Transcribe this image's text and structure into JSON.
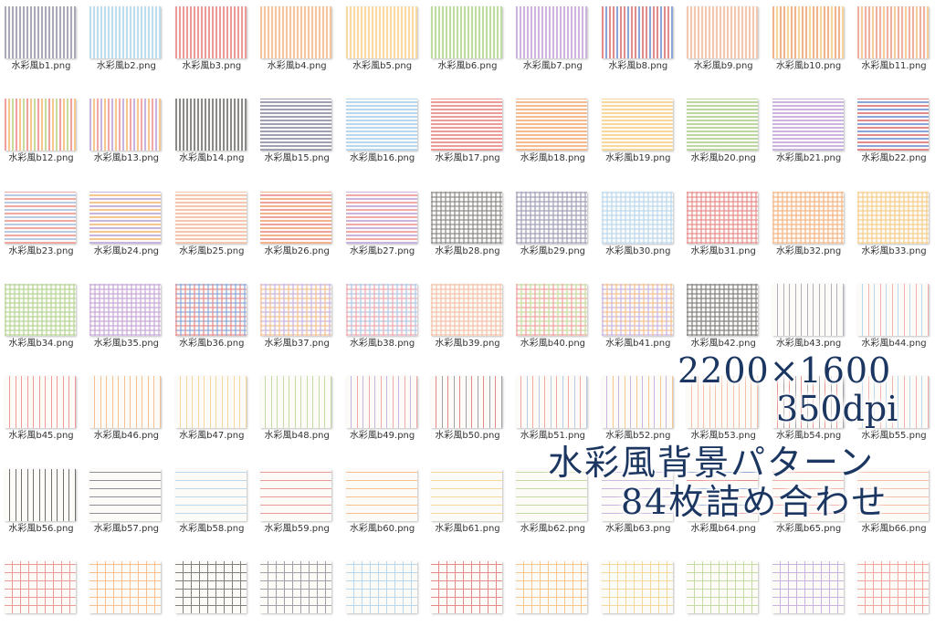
{
  "files": [
    {
      "label": "水彩風b1.png",
      "pattern": "v",
      "colors": [
        "#a9a9b8"
      ]
    },
    {
      "label": "水彩風b2.png",
      "pattern": "v",
      "colors": [
        "#bcdcf0"
      ]
    },
    {
      "label": "水彩風b3.png",
      "pattern": "v",
      "colors": [
        "#ec9a9a"
      ]
    },
    {
      "label": "水彩風b4.png",
      "pattern": "v",
      "colors": [
        "#f6c49a"
      ]
    },
    {
      "label": "水彩風b5.png",
      "pattern": "v",
      "colors": [
        "#f8d9a0"
      ]
    },
    {
      "label": "水彩風b6.png",
      "pattern": "v",
      "colors": [
        "#bfdca0"
      ]
    },
    {
      "label": "水彩風b7.png",
      "pattern": "v",
      "colors": [
        "#cdb3e0"
      ]
    },
    {
      "label": "水彩風b8.png",
      "pattern": "v",
      "colors": [
        "#e48a8a",
        "#8aa6d8"
      ]
    },
    {
      "label": "水彩風b9.png",
      "pattern": "v",
      "colors": [
        "#f4c8b0"
      ]
    },
    {
      "label": "水彩風b10.png",
      "pattern": "v",
      "colors": [
        "#f2b48a",
        "#f6d49a"
      ]
    },
    {
      "label": "水彩風b11.png",
      "pattern": "v",
      "colors": [
        "#f2b0a0",
        "#f6cc9a"
      ]
    },
    {
      "label": "水彩風b12.png",
      "pattern": "v",
      "colors": [
        "#f0a0a0",
        "#f6c890",
        "#c8dca0"
      ]
    },
    {
      "label": "水彩風b13.png",
      "pattern": "v",
      "colors": [
        "#c8b4e0",
        "#f6c890",
        "#f0a8a8"
      ]
    },
    {
      "label": "水彩風b14.png",
      "pattern": "v",
      "colors": [
        "#8a8a8a"
      ]
    },
    {
      "label": "水彩風b15.png",
      "pattern": "h",
      "colors": [
        "#a0a0b4"
      ]
    },
    {
      "label": "水彩風b16.png",
      "pattern": "h",
      "colors": [
        "#b8d8f0"
      ]
    },
    {
      "label": "水彩風b17.png",
      "pattern": "h",
      "colors": [
        "#ec9a9a"
      ]
    },
    {
      "label": "水彩風b18.png",
      "pattern": "h",
      "colors": [
        "#f4bc90"
      ]
    },
    {
      "label": "水彩風b19.png",
      "pattern": "h",
      "colors": [
        "#f6d89c"
      ]
    },
    {
      "label": "水彩風b20.png",
      "pattern": "h",
      "colors": [
        "#bcd8a0"
      ]
    },
    {
      "label": "水彩風b21.png",
      "pattern": "h",
      "colors": [
        "#ccb4e0"
      ]
    },
    {
      "label": "水彩風b22.png",
      "pattern": "h",
      "colors": [
        "#e48a8a",
        "#8aa6d8"
      ]
    },
    {
      "label": "水彩風b23.png",
      "pattern": "h",
      "colors": [
        "#f0a8a0",
        "#b8cce8"
      ]
    },
    {
      "label": "水彩風b24.png",
      "pattern": "h",
      "colors": [
        "#c8b4e0",
        "#f6c890"
      ]
    },
    {
      "label": "水彩風b25.png",
      "pattern": "h",
      "colors": [
        "#f4c8b0"
      ]
    },
    {
      "label": "水彩風b26.png",
      "pattern": "h",
      "colors": [
        "#f2b48a",
        "#f0a0a0"
      ]
    },
    {
      "label": "水彩風b27.png",
      "pattern": "h",
      "colors": [
        "#c8b4e0",
        "#f0a8a8"
      ]
    },
    {
      "label": "水彩風b28.png",
      "pattern": "c",
      "colors": [
        "#8a8a8a"
      ]
    },
    {
      "label": "水彩風b29.png",
      "pattern": "c",
      "colors": [
        "#a0a0b8"
      ]
    },
    {
      "label": "水彩風b30.png",
      "pattern": "c",
      "colors": [
        "#b8d8f0"
      ]
    },
    {
      "label": "水彩風b31.png",
      "pattern": "c",
      "colors": [
        "#e88c8c"
      ]
    },
    {
      "label": "水彩風b32.png",
      "pattern": "c",
      "colors": [
        "#f4b484"
      ]
    },
    {
      "label": "水彩風b33.png",
      "pattern": "c",
      "colors": [
        "#f6cc88"
      ]
    },
    {
      "label": "水彩風b34.png",
      "pattern": "c",
      "colors": [
        "#b4d494"
      ]
    },
    {
      "label": "水彩風b35.png",
      "pattern": "c",
      "colors": [
        "#c4a8dc"
      ]
    },
    {
      "label": "水彩風b36.png",
      "pattern": "c",
      "colors": [
        "#e48a8a",
        "#8aa6d8"
      ]
    },
    {
      "label": "水彩風b37.png",
      "pattern": "c",
      "colors": [
        "#f4c090",
        "#c8b4e0"
      ]
    },
    {
      "label": "水彩風b38.png",
      "pattern": "c",
      "colors": [
        "#f0a8b0",
        "#b0c8e8"
      ]
    },
    {
      "label": "水彩風b39.png",
      "pattern": "c",
      "colors": [
        "#f4c0a8"
      ]
    },
    {
      "label": "水彩風b40.png",
      "pattern": "c",
      "colors": [
        "#f0a0a0",
        "#c8dca0"
      ]
    },
    {
      "label": "水彩風b41.png",
      "pattern": "c",
      "colors": [
        "#c8b4e0",
        "#f4c090"
      ]
    },
    {
      "label": "水彩風b42.png",
      "pattern": "c",
      "colors": [
        "#808080"
      ]
    },
    {
      "label": "水彩風b43.png",
      "pattern": "t",
      "colors": [
        "#b0b0b8"
      ]
    },
    {
      "label": "水彩風b44.png",
      "pattern": "t",
      "colors": [
        "#b8d8f0",
        "#f0b0b0"
      ]
    },
    {
      "label": "水彩風b45.png",
      "pattern": "t",
      "colors": [
        "#f09a9a"
      ]
    },
    {
      "label": "水彩風b46.png",
      "pattern": "t",
      "colors": [
        "#f6c090"
      ]
    },
    {
      "label": "水彩風b47.png",
      "pattern": "t",
      "colors": [
        "#f6d89c"
      ]
    },
    {
      "label": "水彩風b48.png",
      "pattern": "t",
      "colors": [
        "#c4dca4"
      ]
    },
    {
      "label": "水彩風b49.png",
      "pattern": "t",
      "colors": [
        "#c8b4e0",
        "#f0a8a8"
      ]
    },
    {
      "label": "水彩風b50.png",
      "pattern": "t",
      "colors": [
        "#e48a8a",
        "#a0a0a8"
      ]
    },
    {
      "label": "水彩風b51.png",
      "pattern": "t",
      "colors": [
        "#f0a8a0",
        "#b8cce8"
      ]
    },
    {
      "label": "水彩風b52.png",
      "pattern": "t",
      "colors": [
        "#c8b4e0",
        "#f6c890"
      ]
    },
    {
      "label": "水彩風b53.png",
      "pattern": "t",
      "colors": [
        "#f4c0a8"
      ]
    },
    {
      "label": "水彩風b54.png",
      "pattern": "t",
      "colors": [
        "#e89090",
        "#a0a0a8"
      ]
    },
    {
      "label": "水彩風b55.png",
      "pattern": "t",
      "colors": [
        "#b8d8f0",
        "#f0b0b0"
      ]
    },
    {
      "label": "水彩風b56.png",
      "pattern": "t",
      "colors": [
        "#707070"
      ]
    },
    {
      "label": "水彩風b57.png",
      "pattern": "th",
      "colors": [
        "#909098"
      ]
    },
    {
      "label": "水彩風b58.png",
      "pattern": "th",
      "colors": [
        "#b8d8f0"
      ]
    },
    {
      "label": "水彩風b59.png",
      "pattern": "th",
      "colors": [
        "#ec9a9a"
      ]
    },
    {
      "label": "水彩風b60.png",
      "pattern": "th",
      "colors": [
        "#f6c090"
      ]
    },
    {
      "label": "水彩風b61.png",
      "pattern": "th",
      "colors": [
        "#f6d89c"
      ]
    },
    {
      "label": "水彩風b62.png",
      "pattern": "th",
      "colors": [
        "#c4dca4"
      ]
    },
    {
      "label": "水彩風b63.png",
      "pattern": "th",
      "colors": [
        "#c8b4e0"
      ]
    },
    {
      "label": "水彩風b64.png",
      "pattern": "th",
      "colors": [
        "#e48a8a",
        "#8aa6d8"
      ]
    },
    {
      "label": "水彩風b65.png",
      "pattern": "th",
      "colors": [
        "#f0a8a0"
      ]
    },
    {
      "label": "水彩風b66.png",
      "pattern": "th",
      "colors": [
        "#f4c0a8"
      ]
    },
    {
      "label": "",
      "pattern": "tc",
      "colors": [
        "#ec9a9a"
      ]
    },
    {
      "label": "",
      "pattern": "tc",
      "colors": [
        "#f6c090"
      ]
    },
    {
      "label": "",
      "pattern": "tc",
      "colors": [
        "#808080"
      ]
    },
    {
      "label": "",
      "pattern": "tc",
      "colors": [
        "#a0a0a8"
      ]
    },
    {
      "label": "",
      "pattern": "tc",
      "colors": [
        "#b8d8f0"
      ]
    },
    {
      "label": "",
      "pattern": "tc",
      "colors": [
        "#e48a8a"
      ]
    },
    {
      "label": "",
      "pattern": "tc",
      "colors": [
        "#f6c890"
      ]
    },
    {
      "label": "",
      "pattern": "tc",
      "colors": [
        "#f6d89c"
      ]
    },
    {
      "label": "",
      "pattern": "tc",
      "colors": [
        "#c4dca4"
      ]
    },
    {
      "label": "",
      "pattern": "tc",
      "colors": [
        "#c8b4e0"
      ]
    },
    {
      "label": "",
      "pattern": "tc",
      "colors": [
        "#f0a8a0"
      ]
    }
  ],
  "overlay": {
    "size": "2200×1600",
    "dpi": "350dpi",
    "title": "水彩風背景パターン",
    "count": "84枚詰め合わせ",
    "text_color": "#1b3660"
  }
}
